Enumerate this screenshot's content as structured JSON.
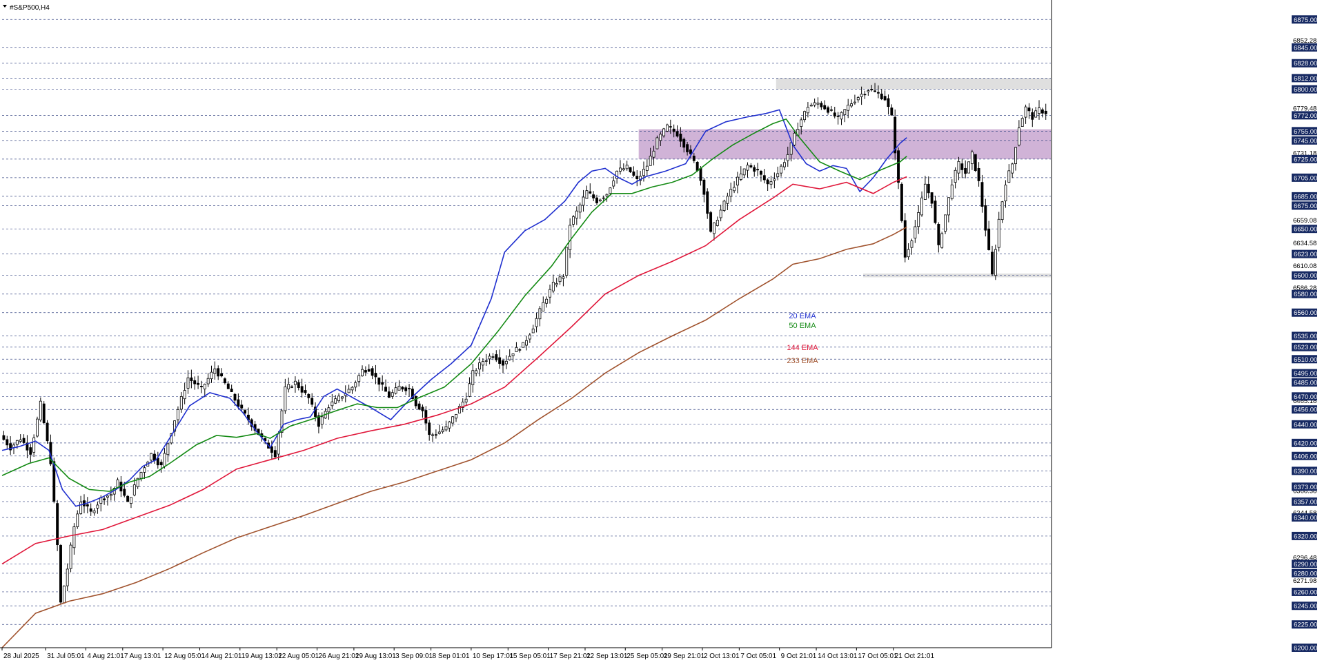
{
  "window": {
    "title": "#S&P500,H4"
  },
  "colors": {
    "background": "#ffffff",
    "grid": "#3b4a86",
    "candle": "#000000",
    "ema20": "#1f2fcf",
    "ema50": "#138a13",
    "ema144": "#e0173a",
    "ema233": "#a0522d",
    "resistance_zone": "#d9d9d9",
    "supply_zone": "#c8a6d0",
    "support_zone": "#d9d9d9",
    "price_label_bg": "#172a63",
    "price_label_text": "#ffffff"
  },
  "chart_data": {
    "type": "line",
    "title": "#S&P500,H4",
    "ylim": [
      6200,
      6890
    ],
    "xlim": [
      0,
      313
    ],
    "grid": true,
    "price_axis_boxed_labels": [
      "6875.00",
      "6845.00",
      "6828.00",
      "6812.00",
      "6800.00",
      "6772.00",
      "6755.00",
      "6745.00",
      "6725.00",
      "6705.00",
      "6685.00",
      "6675.00",
      "6650.00",
      "6623.00",
      "6600.00",
      "6580.00",
      "6560.00",
      "6535.00",
      "6523.00",
      "6510.00",
      "6495.00",
      "6485.00",
      "6470.00",
      "6456.00",
      "6440.00",
      "6420.00",
      "6406.00",
      "6390.00",
      "6373.00",
      "6357.00",
      "6340.00",
      "6320.00",
      "6290.00",
      "6280.00",
      "6260.00",
      "6245.00",
      "6225.00",
      "6200.00"
    ],
    "price_axis_plain_labels": [
      "6852.28",
      "6779.48",
      "6731.18",
      "6659.08",
      "6634.58",
      "6610.08",
      "6586.28",
      "6465.18",
      "6368.38",
      "6344.58",
      "6296.48",
      "6271.98"
    ],
    "x_tick_labels": [
      {
        "label": "28 Jul 2025",
        "bar": 0
      },
      {
        "label": "31 Jul 05:01",
        "bar": 13
      },
      {
        "label": "4 Aug 21:01",
        "bar": 25
      },
      {
        "label": "7 Aug 13:01",
        "bar": 36
      },
      {
        "label": "12 Aug 05:01",
        "bar": 48
      },
      {
        "label": "14 Aug 21:01",
        "bar": 59
      },
      {
        "label": "19 Aug 13:01",
        "bar": 71
      },
      {
        "label": "22 Aug 05:01",
        "bar": 82
      },
      {
        "label": "26 Aug 21:01",
        "bar": 94
      },
      {
        "label": "29 Aug 13:01",
        "bar": 105
      },
      {
        "label": "3 Sep 09:01",
        "bar": 117
      },
      {
        "label": "8 Sep 01:01",
        "bar": 128
      },
      {
        "label": "10 Sep 17:01",
        "bar": 140
      },
      {
        "label": "15 Sep 05:01",
        "bar": 151
      },
      {
        "label": "17 Sep 21:01",
        "bar": 163
      },
      {
        "label": "22 Sep 13:01",
        "bar": 174
      },
      {
        "label": "25 Sep 05:01",
        "bar": 186
      },
      {
        "label": "29 Sep 21:01",
        "bar": 197
      },
      {
        "label": "2 Oct 13:01",
        "bar": 209
      },
      {
        "label": "7 Oct 05:01",
        "bar": 220
      },
      {
        "label": "9 Oct 21:01",
        "bar": 232
      },
      {
        "label": "14 Oct 13:01",
        "bar": 243
      },
      {
        "label": "17 Oct 05:01",
        "bar": 255
      },
      {
        "label": "21 Oct 21:01",
        "bar": 266
      }
    ],
    "series": [
      {
        "name": "20 EMA",
        "color": "#1f2fcf",
        "points": [
          [
            0,
            6412
          ],
          [
            5,
            6416
          ],
          [
            10,
            6422
          ],
          [
            14,
            6412
          ],
          [
            18,
            6370
          ],
          [
            22,
            6352
          ],
          [
            26,
            6356
          ],
          [
            30,
            6362
          ],
          [
            34,
            6370
          ],
          [
            38,
            6380
          ],
          [
            42,
            6395
          ],
          [
            46,
            6402
          ],
          [
            50,
            6425
          ],
          [
            56,
            6460
          ],
          [
            62,
            6474
          ],
          [
            68,
            6468
          ],
          [
            72,
            6452
          ],
          [
            76,
            6432
          ],
          [
            80,
            6415
          ],
          [
            84,
            6440
          ],
          [
            88,
            6445
          ],
          [
            92,
            6448
          ],
          [
            96,
            6470
          ],
          [
            100,
            6478
          ],
          [
            104,
            6470
          ],
          [
            110,
            6458
          ],
          [
            116,
            6445
          ],
          [
            122,
            6468
          ],
          [
            128,
            6488
          ],
          [
            134,
            6505
          ],
          [
            140,
            6525
          ],
          [
            146,
            6575
          ],
          [
            150,
            6625
          ],
          [
            156,
            6648
          ],
          [
            162,
            6660
          ],
          [
            168,
            6680
          ],
          [
            172,
            6700
          ],
          [
            176,
            6712
          ],
          [
            180,
            6715
          ],
          [
            184,
            6705
          ],
          [
            188,
            6698
          ],
          [
            192,
            6706
          ],
          [
            198,
            6712
          ],
          [
            204,
            6720
          ],
          [
            210,
            6755
          ],
          [
            216,
            6765
          ],
          [
            222,
            6770
          ],
          [
            228,
            6774
          ],
          [
            232,
            6778
          ],
          [
            236,
            6740
          ],
          [
            240,
            6720
          ],
          [
            244,
            6712
          ],
          [
            248,
            6718
          ],
          [
            252,
            6715
          ],
          [
            256,
            6690
          ],
          [
            260,
            6705
          ],
          [
            264,
            6725
          ],
          [
            268,
            6742
          ],
          [
            270,
            6748
          ]
        ]
      },
      {
        "name": "50 EMA",
        "color": "#138a13",
        "points": [
          [
            0,
            6385
          ],
          [
            8,
            6398
          ],
          [
            14,
            6404
          ],
          [
            20,
            6382
          ],
          [
            26,
            6370
          ],
          [
            32,
            6368
          ],
          [
            38,
            6378
          ],
          [
            44,
            6384
          ],
          [
            50,
            6398
          ],
          [
            58,
            6418
          ],
          [
            64,
            6428
          ],
          [
            70,
            6426
          ],
          [
            76,
            6430
          ],
          [
            80,
            6425
          ],
          [
            86,
            6438
          ],
          [
            92,
            6445
          ],
          [
            100,
            6455
          ],
          [
            106,
            6462
          ],
          [
            112,
            6458
          ],
          [
            118,
            6458
          ],
          [
            124,
            6468
          ],
          [
            132,
            6480
          ],
          [
            140,
            6505
          ],
          [
            148,
            6540
          ],
          [
            156,
            6578
          ],
          [
            164,
            6610
          ],
          [
            170,
            6640
          ],
          [
            176,
            6668
          ],
          [
            182,
            6688
          ],
          [
            188,
            6688
          ],
          [
            194,
            6695
          ],
          [
            200,
            6700
          ],
          [
            206,
            6708
          ],
          [
            212,
            6725
          ],
          [
            218,
            6740
          ],
          [
            224,
            6752
          ],
          [
            230,
            6763
          ],
          [
            234,
            6768
          ],
          [
            238,
            6748
          ],
          [
            244,
            6722
          ],
          [
            250,
            6712
          ],
          [
            256,
            6703
          ],
          [
            262,
            6713
          ],
          [
            268,
            6722
          ],
          [
            270,
            6728
          ]
        ]
      },
      {
        "name": "144 EMA",
        "color": "#e0173a",
        "points": [
          [
            0,
            6290
          ],
          [
            10,
            6312
          ],
          [
            20,
            6320
          ],
          [
            30,
            6327
          ],
          [
            40,
            6340
          ],
          [
            50,
            6353
          ],
          [
            60,
            6370
          ],
          [
            70,
            6392
          ],
          [
            80,
            6402
          ],
          [
            90,
            6412
          ],
          [
            100,
            6425
          ],
          [
            110,
            6433
          ],
          [
            120,
            6440
          ],
          [
            130,
            6450
          ],
          [
            140,
            6462
          ],
          [
            150,
            6480
          ],
          [
            160,
            6512
          ],
          [
            170,
            6545
          ],
          [
            180,
            6580
          ],
          [
            190,
            6600
          ],
          [
            200,
            6615
          ],
          [
            210,
            6632
          ],
          [
            220,
            6660
          ],
          [
            230,
            6683
          ],
          [
            236,
            6698
          ],
          [
            244,
            6693
          ],
          [
            252,
            6700
          ],
          [
            260,
            6688
          ],
          [
            266,
            6700
          ],
          [
            270,
            6706
          ]
        ]
      },
      {
        "name": "233 EMA",
        "color": "#a0522d",
        "points": [
          [
            0,
            6200
          ],
          [
            10,
            6237
          ],
          [
            20,
            6250
          ],
          [
            30,
            6258
          ],
          [
            40,
            6270
          ],
          [
            50,
            6285
          ],
          [
            60,
            6302
          ],
          [
            70,
            6318
          ],
          [
            80,
            6330
          ],
          [
            90,
            6342
          ],
          [
            100,
            6355
          ],
          [
            110,
            6368
          ],
          [
            120,
            6378
          ],
          [
            130,
            6390
          ],
          [
            140,
            6402
          ],
          [
            150,
            6420
          ],
          [
            160,
            6445
          ],
          [
            170,
            6468
          ],
          [
            180,
            6495
          ],
          [
            190,
            6517
          ],
          [
            200,
            6535
          ],
          [
            210,
            6552
          ],
          [
            220,
            6575
          ],
          [
            230,
            6596
          ],
          [
            236,
            6612
          ],
          [
            244,
            6618
          ],
          [
            252,
            6628
          ],
          [
            260,
            6634
          ],
          [
            266,
            6644
          ],
          [
            270,
            6652
          ]
        ]
      }
    ],
    "price_path": [
      [
        0,
        6428
      ],
      [
        3,
        6415
      ],
      [
        6,
        6425
      ],
      [
        9,
        6410
      ],
      [
        12,
        6462
      ],
      [
        15,
        6400
      ],
      [
        17,
        6310
      ],
      [
        18,
        6248
      ],
      [
        20,
        6285
      ],
      [
        22,
        6330
      ],
      [
        24,
        6358
      ],
      [
        27,
        6345
      ],
      [
        30,
        6360
      ],
      [
        33,
        6365
      ],
      [
        35,
        6378
      ],
      [
        38,
        6355
      ],
      [
        41,
        6382
      ],
      [
        45,
        6408
      ],
      [
        48,
        6395
      ],
      [
        52,
        6445
      ],
      [
        56,
        6490
      ],
      [
        60,
        6478
      ],
      [
        64,
        6500
      ],
      [
        68,
        6478
      ],
      [
        72,
        6455
      ],
      [
        75,
        6440
      ],
      [
        79,
        6420
      ],
      [
        82,
        6408
      ],
      [
        85,
        6478
      ],
      [
        88,
        6485
      ],
      [
        92,
        6468
      ],
      [
        95,
        6440
      ],
      [
        98,
        6460
      ],
      [
        101,
        6468
      ],
      [
        105,
        6480
      ],
      [
        108,
        6498
      ],
      [
        110,
        6500
      ],
      [
        113,
        6485
      ],
      [
        116,
        6470
      ],
      [
        119,
        6480
      ],
      [
        122,
        6478
      ],
      [
        124,
        6462
      ],
      [
        126,
        6455
      ],
      [
        128,
        6428
      ],
      [
        130,
        6430
      ],
      [
        133,
        6436
      ],
      [
        136,
        6452
      ],
      [
        139,
        6470
      ],
      [
        141,
        6495
      ],
      [
        144,
        6508
      ],
      [
        147,
        6515
      ],
      [
        150,
        6505
      ],
      [
        153,
        6518
      ],
      [
        156,
        6525
      ],
      [
        159,
        6545
      ],
      [
        162,
        6570
      ],
      [
        165,
        6590
      ],
      [
        168,
        6600
      ],
      [
        170,
        6655
      ],
      [
        172,
        6668
      ],
      [
        175,
        6690
      ],
      [
        178,
        6680
      ],
      [
        181,
        6688
      ],
      [
        184,
        6712
      ],
      [
        187,
        6716
      ],
      [
        190,
        6702
      ],
      [
        193,
        6718
      ],
      [
        196,
        6745
      ],
      [
        199,
        6760
      ],
      [
        202,
        6752
      ],
      [
        205,
        6735
      ],
      [
        208,
        6715
      ],
      [
        210,
        6690
      ],
      [
        212,
        6645
      ],
      [
        214,
        6662
      ],
      [
        217,
        6685
      ],
      [
        220,
        6703
      ],
      [
        223,
        6718
      ],
      [
        226,
        6712
      ],
      [
        229,
        6698
      ],
      [
        232,
        6710
      ],
      [
        235,
        6730
      ],
      [
        238,
        6760
      ],
      [
        241,
        6782
      ],
      [
        244,
        6785
      ],
      [
        247,
        6778
      ],
      [
        250,
        6768
      ],
      [
        253,
        6782
      ],
      [
        256,
        6792
      ],
      [
        259,
        6800
      ],
      [
        262,
        6795
      ],
      [
        264,
        6790
      ],
      [
        266,
        6770
      ],
      [
        268,
        6698
      ],
      [
        270,
        6620
      ],
      [
        272,
        6640
      ],
      [
        274,
        6665
      ],
      [
        276,
        6698
      ],
      [
        278,
        6680
      ],
      [
        280,
        6630
      ],
      [
        282,
        6665
      ],
      [
        284,
        6700
      ],
      [
        286,
        6720
      ],
      [
        288,
        6710
      ],
      [
        290,
        6730
      ],
      [
        292,
        6700
      ],
      [
        294,
        6650
      ],
      [
        296,
        6600
      ],
      [
        298,
        6660
      ],
      [
        300,
        6700
      ],
      [
        302,
        6720
      ],
      [
        304,
        6760
      ],
      [
        306,
        6780
      ],
      [
        308,
        6770
      ],
      [
        310,
        6778
      ],
      [
        312,
        6775
      ]
    ],
    "annotations": [
      {
        "text": "20 EMA",
        "color": "#1f2fcf"
      },
      {
        "text": "50 EMA",
        "color": "#138a13"
      },
      {
        "text": "144 EMA",
        "color": "#e0173a"
      },
      {
        "text": "233 EMA",
        "color": "#a0522d"
      }
    ],
    "zones": [
      {
        "name": "resistance",
        "from_bar": 231,
        "to_bar": 313,
        "low": 6800,
        "high": 6812
      },
      {
        "name": "supply",
        "from_bar": 190,
        "to_bar": 313,
        "low": 6725,
        "high": 6757
      },
      {
        "name": "support",
        "from_bar": 257,
        "to_bar": 313,
        "low": 6598,
        "high": 6602
      }
    ]
  }
}
